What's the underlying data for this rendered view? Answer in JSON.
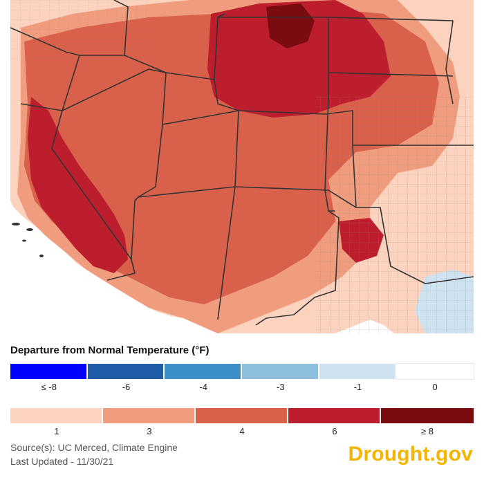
{
  "legend": {
    "title": "Departure from Normal Temperature (°F)",
    "cool": {
      "colors": [
        "#0000ff",
        "#1e5ca8",
        "#3c8fc8",
        "#8dc0de",
        "#cfe2ef",
        "#ffffff"
      ],
      "labels": [
        "≤ -8",
        "-6",
        "-4",
        "-3",
        "-1",
        "0"
      ]
    },
    "warm": {
      "colors": [
        "#fbd3bf",
        "#ef9c7f",
        "#d9614b",
        "#bd1e2d",
        "#7a0b0e"
      ],
      "labels": [
        "1",
        "3",
        "4",
        "6",
        "≥ 8"
      ]
    }
  },
  "source_text": "Source(s): UC Merced, Climate Engine",
  "updated_text": "Last Updated - 11/30/21",
  "logo_text": "Drought.gov",
  "map_colors": {
    "ocean": "#ffffff",
    "light": "#fbd3bf",
    "mid": "#ef9c7f",
    "strong": "#d9614b",
    "deep": "#bd1e2d",
    "darkest": "#7a0b0e",
    "cool": "#cfe2ef",
    "border": "#333333",
    "county": "#8a8a8a"
  }
}
